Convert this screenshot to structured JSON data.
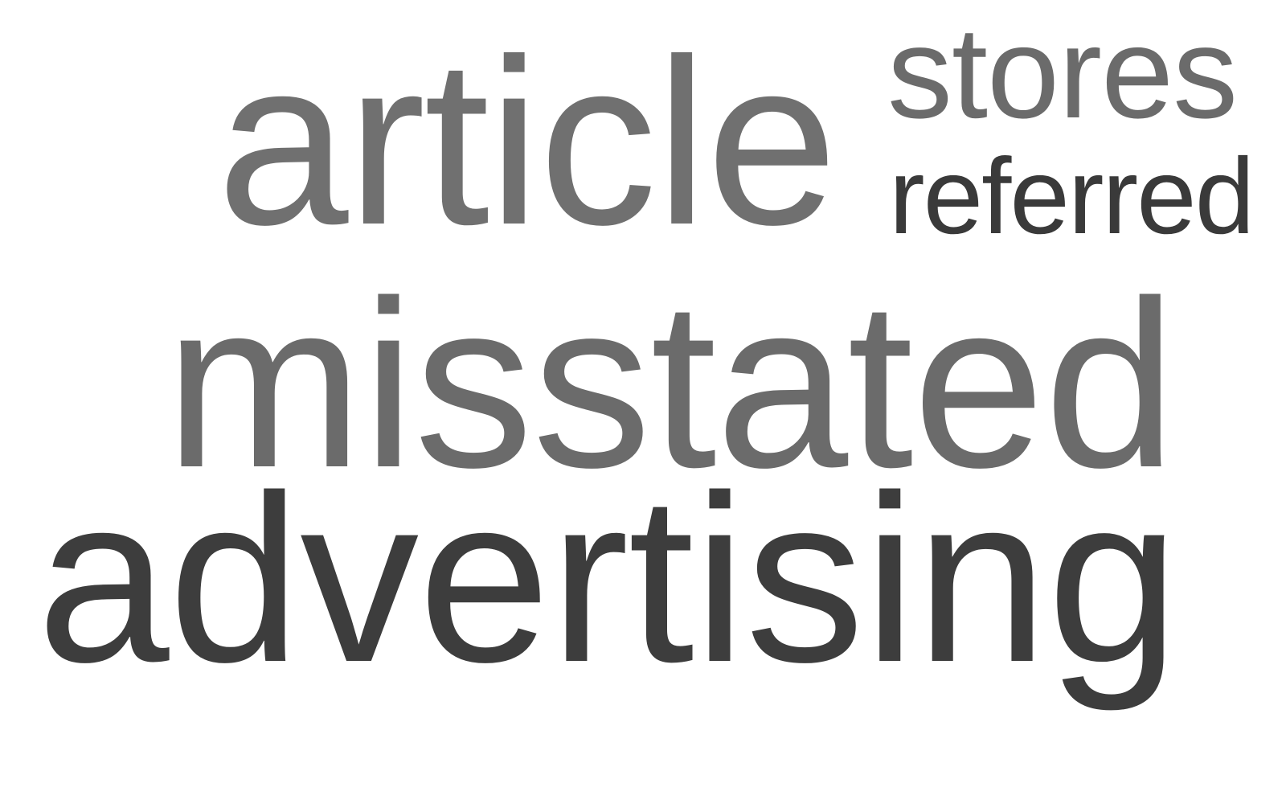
{
  "words": [
    {
      "text": "article",
      "color": "#707070"
    },
    {
      "text": "stores",
      "color": "#6b6b6b"
    },
    {
      "text": "referred",
      "color": "#3a3a3a"
    },
    {
      "text": "misstated",
      "color": "#6b6b6b"
    },
    {
      "text": "advertising",
      "color": "#3d3d3d"
    }
  ]
}
